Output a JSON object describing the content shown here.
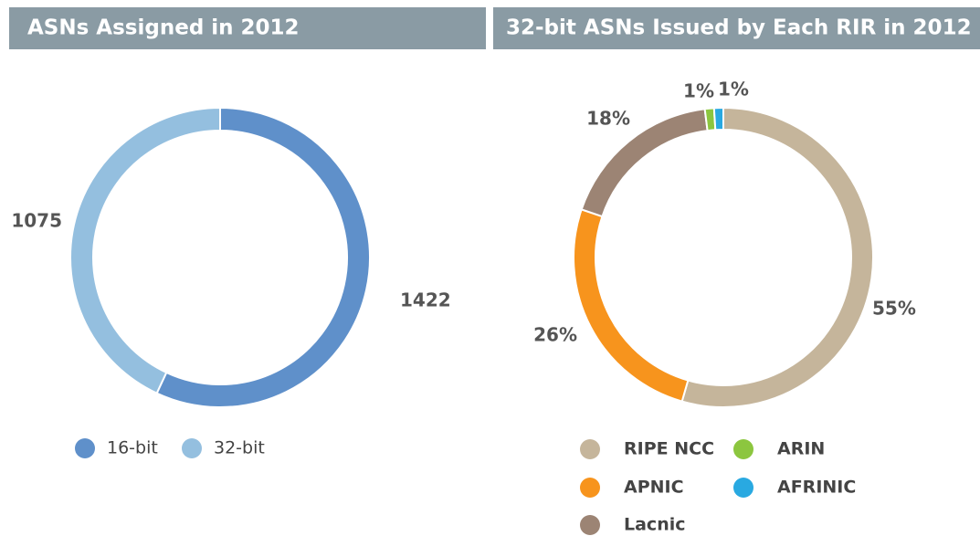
{
  "chart_data": [
    {
      "type": "pie",
      "title": "ASNs Assigned in 2012",
      "categories": [
        "16-bit",
        "32-bit"
      ],
      "values": [
        1422,
        1075
      ],
      "colors": [
        "#5f90ca",
        "#94bfdf"
      ]
    },
    {
      "type": "pie",
      "title": "32-bit ASNs Issued by Each RIR in 2012",
      "categories": [
        "RIPE NCC",
        "APNIC",
        "Lacnic",
        "ARIN",
        "AFRINIC"
      ],
      "values": [
        55,
        26,
        18,
        1,
        1
      ],
      "value_labels": [
        "55%",
        "26%",
        "18%",
        "1%",
        "1%"
      ],
      "colors": [
        "#c5b59b",
        "#f7941d",
        "#9c8474",
        "#8cc63f",
        "#29a9e1"
      ]
    }
  ]
}
